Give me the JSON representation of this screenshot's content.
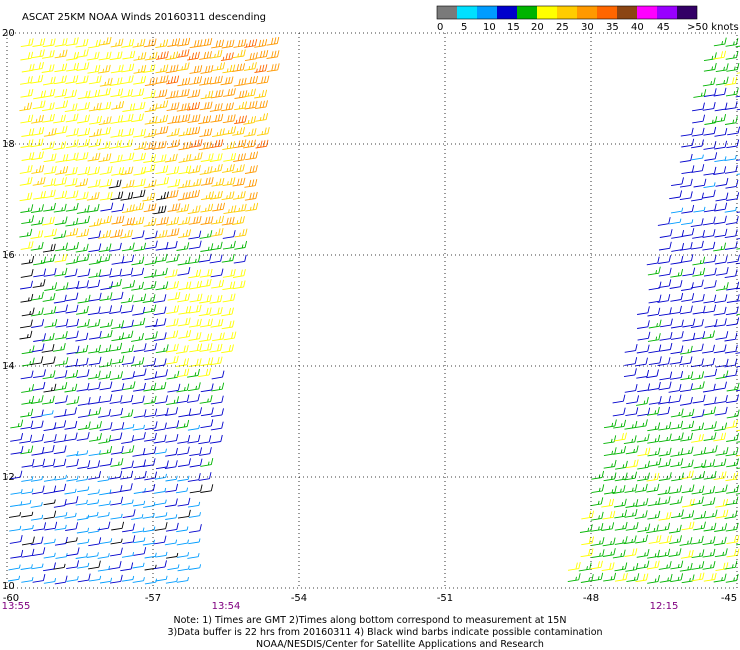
{
  "title": "ASCAT 25KM NOAA Winds 20160311 descending",
  "colorbar": {
    "colors": [
      "#7a7a7a",
      "#00e0ff",
      "#009cff",
      "#0000cc",
      "#00b400",
      "#ffff00",
      "#ffcc00",
      "#ff9900",
      "#ff6600",
      "#8b4513",
      "#ff00ff",
      "#9900ff",
      "#330066"
    ],
    "labels": [
      "0",
      "5",
      "10",
      "15",
      "20",
      "25",
      "30",
      "35",
      "40",
      "45",
      ">50 knots"
    ]
  },
  "map": {
    "lon_labels": [
      "-60",
      "-57",
      "-54",
      "-51",
      "-48",
      "-45"
    ],
    "lat_labels": [
      "20",
      "18",
      "16",
      "14",
      "12",
      "10"
    ],
    "lon_range": [
      -60,
      -45
    ],
    "lat_range": [
      10,
      20
    ],
    "grid": true,
    "projection": "equirectangular"
  },
  "swath_times": [
    {
      "label": "13:55",
      "lon": -60
    },
    {
      "label": "13:54",
      "lon": -55.5
    },
    {
      "label": "12:15",
      "lon": -46.5
    }
  ],
  "notes": [
    "Note: 1) Times are GMT 2)Times along bottom correspond to measurement at 15N",
    "3)Data buffer is 22 hrs from 20160311 4) Black wind barbs indicate possible contamination",
    "NOAA/NESDIS/Center for Satellite Applications and Research"
  ]
}
